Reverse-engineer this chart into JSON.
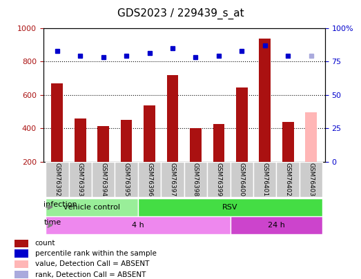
{
  "title": "GDS2023 / 229439_s_at",
  "samples": [
    "GSM76392",
    "GSM76393",
    "GSM76394",
    "GSM76395",
    "GSM76396",
    "GSM76397",
    "GSM76398",
    "GSM76399",
    "GSM76400",
    "GSM76401",
    "GSM76402",
    "GSM76403"
  ],
  "counts": [
    670,
    460,
    415,
    450,
    535,
    720,
    400,
    425,
    645,
    935,
    440,
    null
  ],
  "ranks": [
    83,
    79,
    78,
    79,
    81,
    85,
    78,
    79,
    83,
    87,
    79,
    79
  ],
  "absent_count": 495,
  "absent_rank": 79,
  "absent_index": 11,
  "ylim_left": [
    200,
    1000
  ],
  "ylim_right": [
    0,
    100
  ],
  "yticks_left": [
    200,
    400,
    600,
    800,
    1000
  ],
  "yticks_right": [
    0,
    25,
    50,
    75,
    100
  ],
  "bar_color": "#AA1111",
  "bar_color_absent": "#FFB6B6",
  "rank_color": "#0000CC",
  "rank_color_absent": "#AAAADD",
  "grid_color": "#000000",
  "infection_groups": [
    {
      "label": "vehicle control",
      "start": 0,
      "end": 4,
      "color": "#99EE99"
    },
    {
      "label": "RSV",
      "start": 4,
      "end": 12,
      "color": "#44DD44"
    }
  ],
  "time_groups": [
    {
      "label": "4 h",
      "start": 0,
      "end": 8,
      "color": "#EE88EE"
    },
    {
      "label": "24 h",
      "start": 8,
      "end": 12,
      "color": "#CC44CC"
    }
  ],
  "legend_items": [
    {
      "label": "count",
      "color": "#AA1111"
    },
    {
      "label": "percentile rank within the sample",
      "color": "#0000CC"
    },
    {
      "label": "value, Detection Call = ABSENT",
      "color": "#FFB6B6"
    },
    {
      "label": "rank, Detection Call = ABSENT",
      "color": "#AAAADD"
    }
  ],
  "left_axis_color": "#AA1111",
  "right_axis_color": "#0000CC",
  "bar_width": 0.5
}
